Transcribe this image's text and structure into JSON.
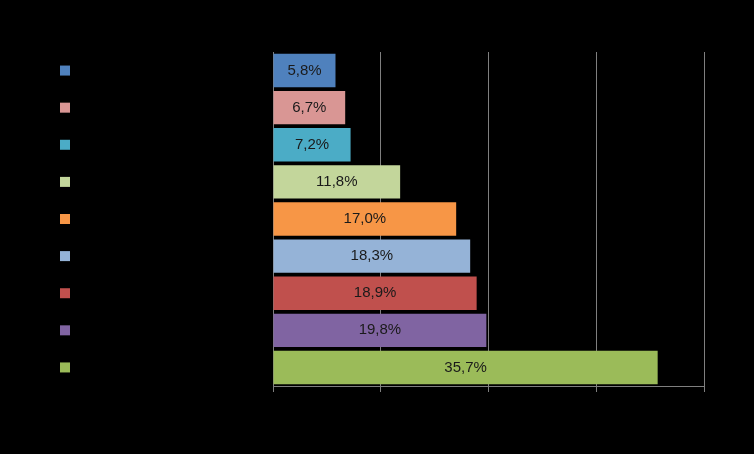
{
  "chart_data": {
    "type": "bar",
    "orientation": "horizontal",
    "categories": [
      null,
      null,
      null,
      null,
      null,
      null,
      null,
      null,
      null
    ],
    "values": [
      5.8,
      6.7,
      7.2,
      11.8,
      17.0,
      18.3,
      18.9,
      19.8,
      35.7
    ],
    "value_labels": [
      "5,8%",
      "6,7%",
      "7,2%",
      "11,8%",
      "17,0%",
      "18,3%",
      "18,9%",
      "19,8%",
      "35,7%"
    ],
    "colors": [
      "#4f81bd",
      "#d99694",
      "#4bacc6",
      "#c3d69b",
      "#f79646",
      "#95b3d7",
      "#c0504d",
      "#8064a2",
      "#9bbb59"
    ],
    "xlim": [
      0,
      40
    ],
    "xticks": [
      0,
      10,
      20,
      30,
      40
    ],
    "grid": true,
    "tick_labels": false,
    "data_labels": true,
    "legend": "left"
  }
}
